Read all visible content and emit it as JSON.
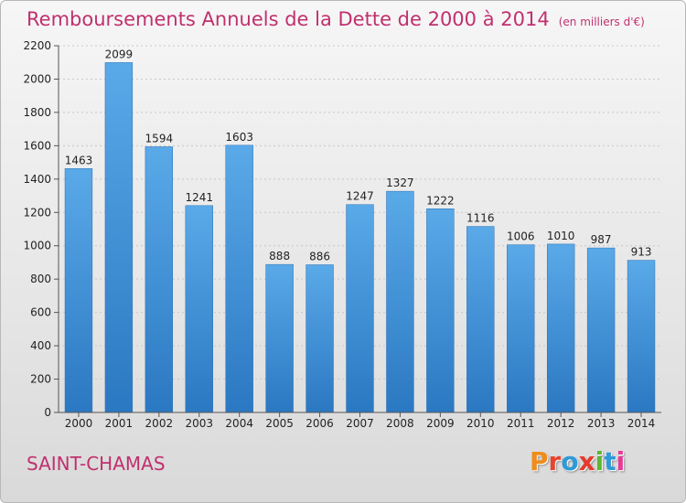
{
  "header": {
    "title": "Remboursements Annuels de la Dette de 2000 à 2014",
    "unit": "(en milliers d'€)"
  },
  "footer": {
    "city": "SAINT-CHAMAS",
    "logo": "Proxiti"
  },
  "colors": {
    "title": "#c0306e",
    "bar_top": "#5aa9e8",
    "bar_bottom": "#2b78c2",
    "logo_letters": [
      "#f08c1c",
      "#e8442c",
      "#2e9ad8",
      "#e63a2c",
      "#5cb82e",
      "#2e9ad8",
      "#e63a9a"
    ]
  },
  "chart_data": {
    "type": "bar",
    "categories": [
      "2000",
      "2001",
      "2002",
      "2003",
      "2004",
      "2005",
      "2006",
      "2007",
      "2008",
      "2009",
      "2010",
      "2011",
      "2012",
      "2013",
      "2014"
    ],
    "values": [
      1463,
      2099,
      1594,
      1241,
      1603,
      888,
      886,
      1247,
      1327,
      1222,
      1116,
      1006,
      1010,
      987,
      913
    ],
    "ylim": [
      0,
      2200
    ],
    "yticks": [
      0,
      200,
      400,
      600,
      800,
      1000,
      1200,
      1400,
      1600,
      1800,
      2000,
      2200
    ],
    "grid": true
  }
}
